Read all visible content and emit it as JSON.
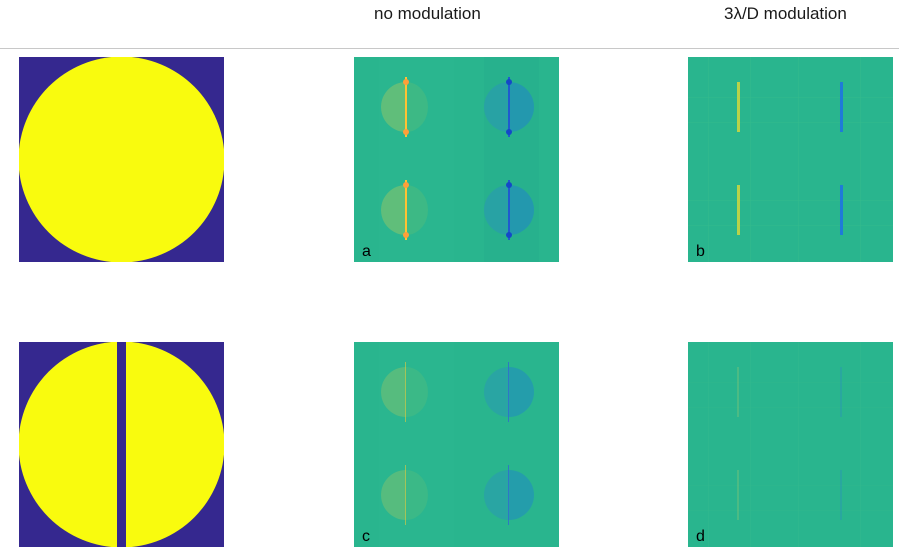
{
  "headers": {
    "no_modulation": "no modulation",
    "modulation": "3λ/D modulation"
  },
  "panels": {
    "a": {
      "label": "a"
    },
    "b": {
      "label": "b"
    },
    "c": {
      "label": "c"
    },
    "d": {
      "label": "d"
    }
  },
  "colors": {
    "pupil_background": "#35288f",
    "pupil_disk": "#f9fb0e",
    "map_background": "#29b58e",
    "positive_feature": "#ffc232",
    "negative_feature": "#1f7bd8"
  }
}
